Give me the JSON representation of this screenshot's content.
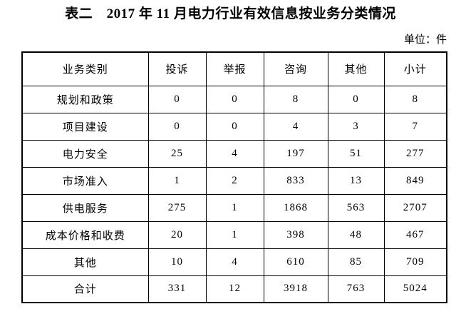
{
  "page": {
    "title": "表二　2017 年 11 月电力行业有效信息按业务分类情况",
    "unit_label": "单位：件"
  },
  "table": {
    "headers": [
      "业务类别",
      "投诉",
      "举报",
      "咨询",
      "其他",
      "小计"
    ],
    "rows": [
      {
        "cells": [
          "规划和政策",
          "0",
          "0",
          "8",
          "0",
          "8"
        ]
      },
      {
        "cells": [
          "项目建设",
          "0",
          "0",
          "4",
          "3",
          "7"
        ]
      },
      {
        "cells": [
          "电力安全",
          "25",
          "4",
          "197",
          "51",
          "277"
        ]
      },
      {
        "cells": [
          "市场准入",
          "1",
          "2",
          "833",
          "13",
          "849"
        ]
      },
      {
        "cells": [
          "供电服务",
          "275",
          "1",
          "1868",
          "563",
          "2707"
        ]
      },
      {
        "cells": [
          "成本价格和收费",
          "20",
          "1",
          "398",
          "48",
          "467"
        ]
      },
      {
        "cells": [
          "其他",
          "10",
          "4",
          "610",
          "85",
          "709"
        ]
      },
      {
        "cells": [
          "合计",
          "331",
          "12",
          "3918",
          "763",
          "5024"
        ]
      }
    ]
  },
  "colors": {
    "text": "#000000",
    "border": "#000000",
    "background": "#ffffff"
  }
}
